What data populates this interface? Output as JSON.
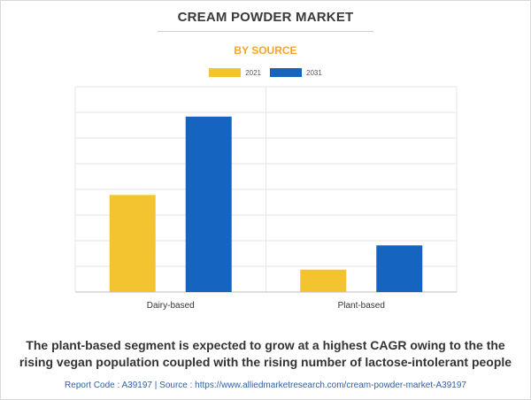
{
  "title": "CREAM POWDER MARKET",
  "subtitle": "BY SOURCE",
  "caption": "The plant-based segment is expected to grow at a highest CAGR owing to the the rising vegan population coupled with the rising number of lactose-intolerant people",
  "footer": "Report Code : A39197  |  Source : https://www.alliedmarketresearch.com/cream-powder-market-A39197",
  "colors": {
    "accent": "#f5a623",
    "s2021": "#f4c430",
    "s2031": "#1565c0",
    "grid": "#e6e6e6"
  },
  "chart_data": {
    "type": "bar",
    "categories": [
      "Dairy-based",
      "Plant-based"
    ],
    "series": [
      {
        "name": "2021",
        "values": [
          5.2,
          1.2
        ]
      },
      {
        "name": "2031",
        "values": [
          9.4,
          2.5
        ]
      }
    ],
    "ylim": [
      0,
      11
    ],
    "grid": true,
    "legend": "top-center"
  }
}
